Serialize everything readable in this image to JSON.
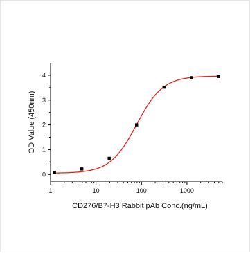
{
  "chart_data": {
    "type": "scatter",
    "title": "",
    "xlabel": "CD276/B7-H3 Rabbit pAb Conc.(ng/mL)",
    "ylabel": "OD Value (450nm)",
    "x_scale": "log",
    "xlim": [
      1,
      6000
    ],
    "ylim": [
      -0.3,
      4.5
    ],
    "x_ticks": [
      1,
      10,
      100,
      1000
    ],
    "x_tick_labels": [
      "1",
      "10",
      "100",
      "1000"
    ],
    "y_ticks": [
      0,
      1,
      2,
      3,
      4
    ],
    "y_tick_labels": [
      "0",
      "1",
      "2",
      "3",
      "4"
    ],
    "grid": false,
    "colors": {
      "points": "#000000",
      "curve": "#e8221b",
      "axis": "#000000"
    },
    "series": [
      {
        "points": [
          {
            "x": 1.22,
            "y": 0.08
          },
          {
            "x": 4.88,
            "y": 0.22
          },
          {
            "x": 19.5,
            "y": 0.65
          },
          {
            "x": 78.1,
            "y": 2.0
          },
          {
            "x": 312.5,
            "y": 3.52
          },
          {
            "x": 1250,
            "y": 3.9
          },
          {
            "x": 5000,
            "y": 3.95
          }
        ]
      }
    ],
    "fit_curve": {
      "model": "4PL",
      "bottom": 0.05,
      "top": 3.97,
      "ec50": 78,
      "hill": 1.5
    }
  }
}
